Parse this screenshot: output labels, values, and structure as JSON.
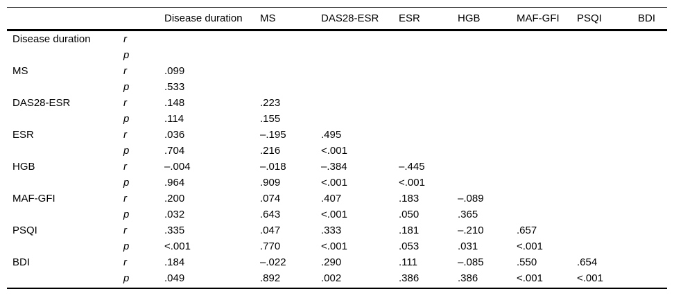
{
  "table": {
    "stat_labels": {
      "r": "r",
      "p": "p"
    },
    "columns": [
      "Disease duration",
      "MS",
      "DAS28-ESR",
      "ESR",
      "HGB",
      "MAF-GFI",
      "PSQI",
      "BDI"
    ],
    "rows": [
      {
        "label": "Disease duration",
        "r": [
          "",
          "",
          "",
          "",
          "",
          "",
          "",
          ""
        ],
        "p": [
          "",
          "",
          "",
          "",
          "",
          "",
          "",
          ""
        ]
      },
      {
        "label": "MS",
        "r": [
          ".099",
          "",
          "",
          "",
          "",
          "",
          "",
          ""
        ],
        "p": [
          ".533",
          "",
          "",
          "",
          "",
          "",
          "",
          ""
        ]
      },
      {
        "label": "DAS28-ESR",
        "r": [
          ".148",
          ".223",
          "",
          "",
          "",
          "",
          "",
          ""
        ],
        "p": [
          ".114",
          ".155",
          "",
          "",
          "",
          "",
          "",
          ""
        ]
      },
      {
        "label": "ESR",
        "r": [
          ".036",
          "–.195",
          ".495",
          "",
          "",
          "",
          "",
          ""
        ],
        "p": [
          ".704",
          ".216",
          "<.001",
          "",
          "",
          "",
          "",
          ""
        ]
      },
      {
        "label": "HGB",
        "r": [
          "–.004",
          "–.018",
          "–.384",
          "–.445",
          "",
          "",
          "",
          ""
        ],
        "p": [
          ".964",
          ".909",
          "<.001",
          "<.001",
          "",
          "",
          "",
          ""
        ]
      },
      {
        "label": "MAF-GFI",
        "r": [
          ".200",
          ".074",
          ".407",
          ".183",
          "–.089",
          "",
          "",
          ""
        ],
        "p": [
          ".032",
          ".643",
          "<.001",
          ".050",
          ".365",
          "",
          "",
          ""
        ]
      },
      {
        "label": "PSQI",
        "r": [
          ".335",
          ".047",
          ".333",
          ".181",
          "–.210",
          ".657",
          "",
          ""
        ],
        "p": [
          "<.001",
          ".770",
          "<.001",
          ".053",
          ".031",
          "<.001",
          "",
          ""
        ]
      },
      {
        "label": "BDI",
        "r": [
          ".184",
          "–.022",
          ".290",
          ".111",
          "–.085",
          ".550",
          ".654",
          ""
        ],
        "p": [
          ".049",
          ".892",
          ".002",
          ".386",
          ".386",
          "<.001",
          "<.001",
          ""
        ]
      }
    ]
  }
}
